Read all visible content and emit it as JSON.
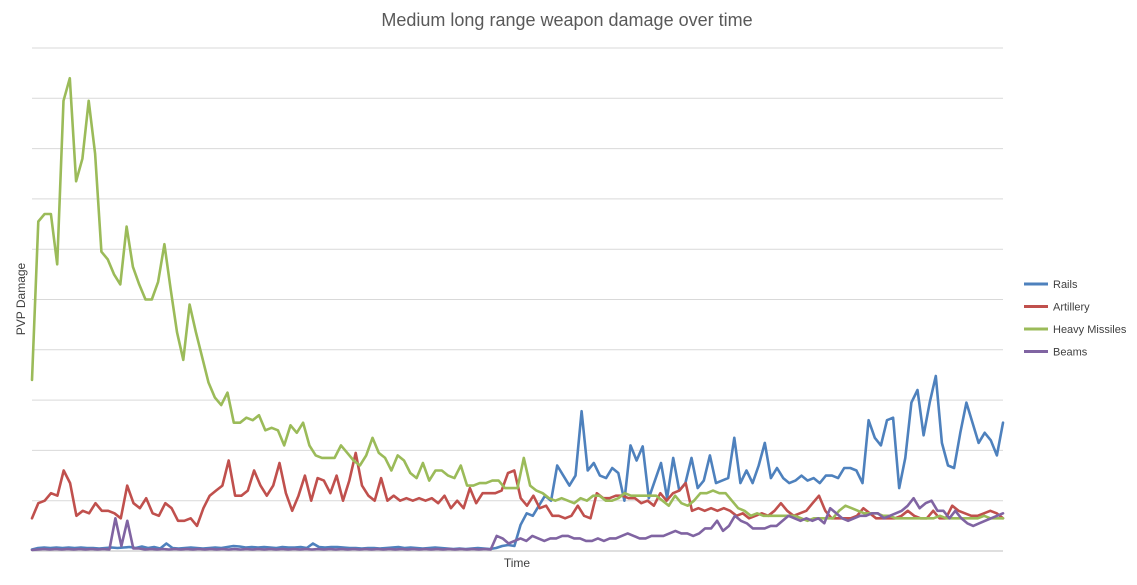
{
  "chart_data": {
    "type": "line",
    "title": "Medium long range weapon damage over time",
    "xlabel": "Time",
    "ylabel": "PVP Damage",
    "ylim": [
      0,
      100
    ],
    "grid": true,
    "legend_position": "right",
    "series": [
      {
        "name": "Rails",
        "color": "#4e81bd",
        "values": [
          0.3,
          0.6,
          0.7,
          0.6,
          0.7,
          0.6,
          0.7,
          0.6,
          0.7,
          0.6,
          0.6,
          0.5,
          0.6,
          0.7,
          0.6,
          0.7,
          0.8,
          0.6,
          0.9,
          0.6,
          0.8,
          0.5,
          1.5,
          0.6,
          0.5,
          0.6,
          0.7,
          0.6,
          0.5,
          0.6,
          0.7,
          0.6,
          0.8,
          1.0,
          0.9,
          0.7,
          0.8,
          0.7,
          0.8,
          0.7,
          0.6,
          0.8,
          0.7,
          0.7,
          0.8,
          0.6,
          1.5,
          0.8,
          0.7,
          0.8,
          0.8,
          0.7,
          0.6,
          0.6,
          0.5,
          0.6,
          0.6,
          0.5,
          0.6,
          0.7,
          0.8,
          0.6,
          0.7,
          0.6,
          0.5,
          0.6,
          0.7,
          0.6,
          0.5,
          0.4,
          0.5,
          0.4,
          0.5,
          0.6,
          0.5,
          0.4,
          0.6,
          1.0,
          1.2,
          1.0,
          5.2,
          7.5,
          7.0,
          9.0,
          11.0,
          10.0,
          17.0,
          15.0,
          13.0,
          15.0,
          27.8,
          16.0,
          17.5,
          15.0,
          14.5,
          16.5,
          15.5,
          10.0,
          21.0,
          18.0,
          20.8,
          10.5,
          14.0,
          17.5,
          10.5,
          18.5,
          12.0,
          13.5,
          18.5,
          12.5,
          14.0,
          19.0,
          13.5,
          14.0,
          14.5,
          22.5,
          13.5,
          16.0,
          13.5,
          17.0,
          21.5,
          14.5,
          16.5,
          14.5,
          13.5,
          14.0,
          15.0,
          14.0,
          14.5,
          13.5,
          15.0,
          15.0,
          14.5,
          16.5,
          16.5,
          16.0,
          13.5,
          26.0,
          22.5,
          21.0,
          26.0,
          26.5,
          12.5,
          18.5,
          29.5,
          32.0,
          23.0,
          29.5,
          34.8,
          21.5,
          17.0,
          16.5,
          23.5,
          29.5,
          25.5,
          21.5,
          23.5,
          22.0,
          19.0,
          25.5
        ]
      },
      {
        "name": "Artillery",
        "color": "#c0504d",
        "values": [
          6.5,
          9.5,
          10.0,
          11.5,
          11.0,
          16.0,
          13.5,
          7.0,
          8.0,
          7.5,
          9.5,
          8.0,
          8.0,
          7.5,
          6.5,
          13.0,
          9.5,
          8.5,
          10.5,
          7.5,
          7.0,
          9.5,
          8.5,
          6.0,
          6.0,
          6.5,
          5.0,
          8.5,
          11.0,
          12.0,
          13.0,
          18.0,
          11.0,
          11.0,
          12.0,
          16.0,
          13.0,
          11.0,
          13.0,
          17.5,
          11.5,
          8.0,
          11.0,
          15.0,
          10.0,
          14.5,
          14.0,
          11.5,
          15.0,
          10.0,
          14.0,
          19.5,
          13.0,
          11.0,
          10.0,
          14.5,
          10.0,
          11.0,
          10.0,
          10.5,
          10.0,
          10.5,
          10.0,
          10.5,
          9.5,
          11.0,
          8.5,
          10.0,
          8.5,
          12.5,
          9.5,
          11.5,
          11.5,
          11.5,
          12.0,
          15.5,
          16.0,
          10.5,
          9.0,
          11.0,
          8.5,
          9.0,
          7.0,
          7.0,
          6.5,
          7.0,
          9.0,
          7.0,
          6.5,
          11.5,
          10.5,
          10.5,
          11.0,
          11.0,
          10.5,
          10.5,
          9.5,
          10.0,
          9.0,
          11.5,
          10.0,
          11.5,
          12.0,
          13.5,
          8.0,
          8.5,
          8.0,
          8.5,
          8.0,
          8.5,
          8.0,
          7.0,
          7.5,
          6.5,
          7.0,
          7.5,
          7.0,
          8.0,
          9.5,
          8.0,
          7.0,
          7.5,
          8.0,
          9.5,
          11.0,
          8.0,
          6.5,
          6.5,
          6.5,
          6.5,
          7.0,
          8.5,
          7.5,
          6.5,
          6.5,
          6.5,
          6.5,
          7.0,
          8.0,
          7.0,
          6.5,
          6.5,
          8.0,
          6.5,
          6.5,
          9.0,
          8.0,
          7.5,
          7.0,
          7.0,
          7.5,
          8.0,
          7.5,
          6.5
        ]
      },
      {
        "name": "Heavy Missiles",
        "color": "#9bbb59",
        "values": [
          34.0,
          65.5,
          67.0,
          67.0,
          57.0,
          89.5,
          94.0,
          73.5,
          78.0,
          89.5,
          79.0,
          59.5,
          58.0,
          55.0,
          53.0,
          64.5,
          56.5,
          53.0,
          50.0,
          50.0,
          53.5,
          61.0,
          52.0,
          43.5,
          38.0,
          49.0,
          43.5,
          38.5,
          33.5,
          30.5,
          29.0,
          31.5,
          25.5,
          25.5,
          26.5,
          26.0,
          27.0,
          24.0,
          24.5,
          24.0,
          21.0,
          25.0,
          23.5,
          25.5,
          21.0,
          19.0,
          18.5,
          18.5,
          18.5,
          21.0,
          19.5,
          18.0,
          17.0,
          19.0,
          22.5,
          19.5,
          18.5,
          16.0,
          19.0,
          18.0,
          15.5,
          14.5,
          17.5,
          14.0,
          16.0,
          16.0,
          15.0,
          14.5,
          17.0,
          13.0,
          13.0,
          13.5,
          13.5,
          14.0,
          14.0,
          12.5,
          12.5,
          12.5,
          18.5,
          13.0,
          12.0,
          11.5,
          10.5,
          10.0,
          10.5,
          10.0,
          9.5,
          10.5,
          10.0,
          11.0,
          11.0,
          10.0,
          10.0,
          10.5,
          11.5,
          11.0,
          11.0,
          11.0,
          11.0,
          11.0,
          10.0,
          9.0,
          11.0,
          9.5,
          9.0,
          10.0,
          11.5,
          11.5,
          12.0,
          11.5,
          11.5,
          10.0,
          8.5,
          8.0,
          7.0,
          7.5,
          7.0,
          7.0,
          7.0,
          7.0,
          7.0,
          7.0,
          6.5,
          6.0,
          6.5,
          6.5,
          6.5,
          6.5,
          8.0,
          9.0,
          8.5,
          8.0,
          7.5,
          7.5,
          7.5,
          7.0,
          7.0,
          6.5,
          6.5,
          6.5,
          6.5,
          6.5,
          6.5,
          6.5,
          7.0,
          6.5,
          6.5,
          6.5,
          6.5,
          6.5,
          6.5,
          7.0,
          6.5,
          6.5,
          6.5
        ]
      },
      {
        "name": "Beams",
        "color": "#8064a2",
        "values": [
          0.2,
          0.3,
          0.4,
          0.3,
          0.4,
          0.3,
          0.4,
          0.3,
          0.4,
          0.3,
          0.4,
          0.3,
          0.4,
          0.3,
          6.5,
          1.0,
          6.0,
          0.5,
          0.5,
          0.3,
          0.4,
          0.3,
          0.4,
          0.3,
          0.4,
          0.3,
          0.4,
          0.3,
          0.4,
          0.3,
          0.4,
          0.3,
          0.4,
          0.3,
          0.4,
          0.3,
          0.4,
          0.3,
          0.4,
          0.3,
          0.4,
          0.3,
          0.4,
          0.3,
          0.4,
          0.3,
          0.4,
          0.3,
          0.4,
          0.3,
          0.4,
          0.3,
          0.4,
          0.3,
          0.4,
          0.3,
          0.4,
          0.3,
          0.4,
          0.3,
          0.4,
          0.3,
          0.4,
          0.3,
          0.4,
          0.3,
          0.4,
          0.3,
          0.4,
          0.3,
          0.4,
          0.3,
          0.4,
          0.3,
          0.4,
          0.3,
          0.4,
          0.3,
          3.0,
          2.5,
          1.5,
          2.0,
          2.5,
          2.0,
          3.0,
          2.5,
          2.0,
          2.5,
          2.5,
          3.0,
          3.0,
          2.5,
          2.5,
          2.0,
          2.0,
          2.5,
          2.0,
          2.5,
          2.5,
          3.0,
          3.5,
          3.0,
          2.5,
          2.5,
          3.0,
          3.0,
          3.0,
          3.5,
          4.0,
          3.5,
          3.5,
          3.0,
          3.5,
          4.5,
          4.5,
          6.0,
          4.0,
          5.0,
          7.0,
          6.0,
          5.5,
          4.5,
          4.5,
          4.5,
          5.0,
          5.0,
          6.0,
          7.0,
          6.5,
          6.0,
          6.5,
          6.0,
          6.5,
          5.5,
          8.5,
          7.5,
          6.5,
          6.0,
          6.5,
          7.0,
          7.0,
          7.5,
          7.5,
          6.5,
          7.0,
          7.5,
          8.0,
          9.0,
          10.5,
          8.5,
          9.5,
          10.0,
          8.0,
          8.0,
          6.5,
          8.0,
          6.5,
          5.5,
          5.0,
          5.5,
          6.0,
          6.5,
          7.0,
          7.5
        ]
      }
    ]
  }
}
